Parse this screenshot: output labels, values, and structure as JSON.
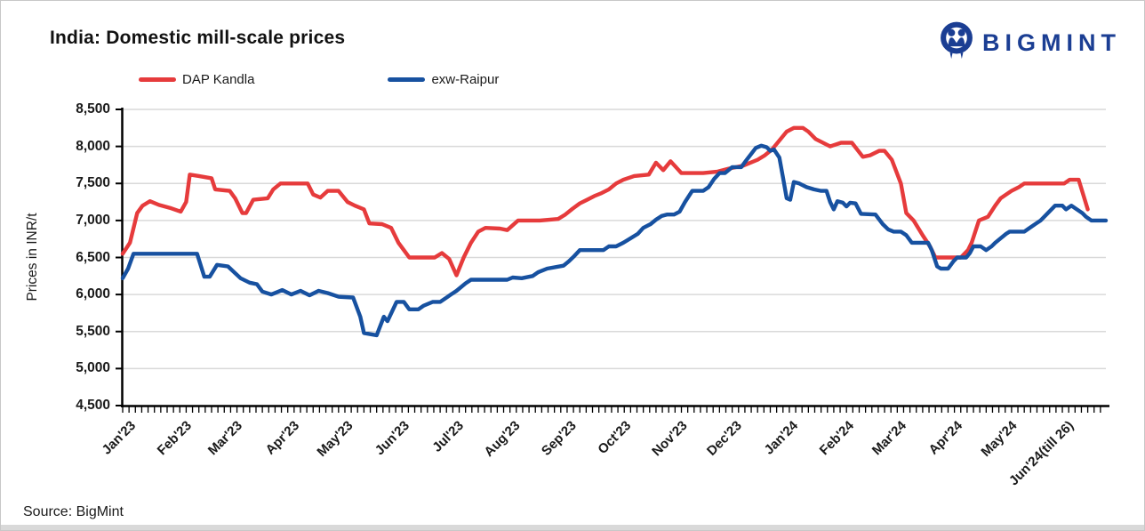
{
  "card": {
    "title": "India: Domestic mill-scale prices",
    "source": "Source: BigMint"
  },
  "logo": {
    "text": "BIGMINT",
    "color": "#1b3e93"
  },
  "colors": {
    "dap_kandla": "#e63b3c",
    "exw_raipur": "#1751a0",
    "grid": "#d9d9d9",
    "axis": "#000000",
    "bottom_strip": "#d9d9d9"
  },
  "chart_data": {
    "type": "line",
    "title": "India: Domestic mill-scale prices",
    "ylabel": "Prices in INR/t",
    "ylim": [
      4500,
      8500
    ],
    "y_tick_step": 500,
    "y_ticks": [
      {
        "value": 8500,
        "label": "8,500"
      },
      {
        "value": 8000,
        "label": "8,000"
      },
      {
        "value": 7500,
        "label": "7,500"
      },
      {
        "value": 7000,
        "label": "7,000"
      },
      {
        "value": 6500,
        "label": "6,500"
      },
      {
        "value": 6000,
        "label": "6,000"
      },
      {
        "value": 5500,
        "label": "5,500"
      },
      {
        "value": 5000,
        "label": "5,000"
      },
      {
        "value": 4500,
        "label": "4,500"
      }
    ],
    "x_unit": "days since 1 Jan 2023",
    "x_range": [
      0,
      542
    ],
    "x_ticks": [
      {
        "label": "Jan'23",
        "day": 0
      },
      {
        "label": "Feb'23",
        "day": 31
      },
      {
        "label": "Mar'23",
        "day": 59
      },
      {
        "label": "Apr'23",
        "day": 90
      },
      {
        "label": "May'23",
        "day": 120
      },
      {
        "label": "Jun'23",
        "day": 151
      },
      {
        "label": "Jul'23",
        "day": 181
      },
      {
        "label": "Aug'23",
        "day": 212
      },
      {
        "label": "Sep'23",
        "day": 243
      },
      {
        "label": "Oct'23",
        "day": 273
      },
      {
        "label": "Nov'23",
        "day": 304
      },
      {
        "label": "Dec'23",
        "day": 334
      },
      {
        "label": "Jan'24",
        "day": 365
      },
      {
        "label": "Feb'24",
        "day": 396
      },
      {
        "label": "Mar'24",
        "day": 425
      },
      {
        "label": "Apr'24",
        "day": 456
      },
      {
        "label": "May'24",
        "day": 486
      },
      {
        "label": "Jun'24(till 26)",
        "day": 517
      }
    ],
    "grid": "horizontal",
    "legend_position": "top-left",
    "series": [
      {
        "name": "DAP Kandla",
        "color": "#e63b3c",
        "points": [
          [
            0,
            6550
          ],
          [
            4,
            6700
          ],
          [
            8,
            7100
          ],
          [
            11,
            7200
          ],
          [
            15,
            7260
          ],
          [
            20,
            7210
          ],
          [
            26,
            7170
          ],
          [
            32,
            7120
          ],
          [
            35,
            7250
          ],
          [
            37,
            7620
          ],
          [
            42,
            7600
          ],
          [
            49,
            7570
          ],
          [
            51,
            7420
          ],
          [
            59,
            7400
          ],
          [
            62,
            7300
          ],
          [
            66,
            7100
          ],
          [
            68,
            7100
          ],
          [
            72,
            7280
          ],
          [
            80,
            7300
          ],
          [
            83,
            7420
          ],
          [
            87,
            7500
          ],
          [
            102,
            7500
          ],
          [
            105,
            7350
          ],
          [
            109,
            7310
          ],
          [
            113,
            7400
          ],
          [
            119,
            7400
          ],
          [
            124,
            7250
          ],
          [
            128,
            7200
          ],
          [
            133,
            7150
          ],
          [
            136,
            6960
          ],
          [
            143,
            6950
          ],
          [
            148,
            6900
          ],
          [
            152,
            6700
          ],
          [
            155,
            6600
          ],
          [
            158,
            6500
          ],
          [
            172,
            6500
          ],
          [
            176,
            6560
          ],
          [
            180,
            6480
          ],
          [
            184,
            6260
          ],
          [
            188,
            6500
          ],
          [
            192,
            6700
          ],
          [
            196,
            6850
          ],
          [
            200,
            6900
          ],
          [
            208,
            6890
          ],
          [
            212,
            6870
          ],
          [
            218,
            7000
          ],
          [
            230,
            7000
          ],
          [
            240,
            7020
          ],
          [
            244,
            7080
          ],
          [
            248,
            7160
          ],
          [
            252,
            7230
          ],
          [
            256,
            7280
          ],
          [
            260,
            7330
          ],
          [
            264,
            7370
          ],
          [
            268,
            7420
          ],
          [
            272,
            7500
          ],
          [
            276,
            7550
          ],
          [
            282,
            7600
          ],
          [
            290,
            7620
          ],
          [
            294,
            7780
          ],
          [
            298,
            7680
          ],
          [
            302,
            7800
          ],
          [
            308,
            7640
          ],
          [
            320,
            7640
          ],
          [
            328,
            7660
          ],
          [
            334,
            7700
          ],
          [
            342,
            7740
          ],
          [
            350,
            7820
          ],
          [
            354,
            7880
          ],
          [
            358,
            7960
          ],
          [
            362,
            8080
          ],
          [
            366,
            8200
          ],
          [
            370,
            8250
          ],
          [
            375,
            8250
          ],
          [
            378,
            8200
          ],
          [
            382,
            8100
          ],
          [
            390,
            8000
          ],
          [
            396,
            8050
          ],
          [
            402,
            8050
          ],
          [
            408,
            7860
          ],
          [
            412,
            7880
          ],
          [
            417,
            7940
          ],
          [
            420,
            7940
          ],
          [
            424,
            7820
          ],
          [
            429,
            7500
          ],
          [
            432,
            7100
          ],
          [
            436,
            7000
          ],
          [
            441,
            6800
          ],
          [
            445,
            6650
          ],
          [
            448,
            6500
          ],
          [
            462,
            6500
          ],
          [
            466,
            6600
          ],
          [
            468,
            6700
          ],
          [
            472,
            7000
          ],
          [
            477,
            7050
          ],
          [
            481,
            7200
          ],
          [
            484,
            7300
          ],
          [
            487,
            7350
          ],
          [
            490,
            7400
          ],
          [
            494,
            7450
          ],
          [
            497,
            7500
          ],
          [
            519,
            7500
          ],
          [
            522,
            7550
          ],
          [
            527,
            7550
          ],
          [
            532,
            7150
          ]
        ]
      },
      {
        "name": "exw-Raipur",
        "color": "#1751a0",
        "points": [
          [
            0,
            6220
          ],
          [
            3,
            6350
          ],
          [
            6,
            6550
          ],
          [
            41,
            6550
          ],
          [
            45,
            6240
          ],
          [
            48,
            6240
          ],
          [
            52,
            6400
          ],
          [
            58,
            6380
          ],
          [
            65,
            6220
          ],
          [
            70,
            6160
          ],
          [
            74,
            6140
          ],
          [
            77,
            6040
          ],
          [
            82,
            6000
          ],
          [
            88,
            6060
          ],
          [
            93,
            6000
          ],
          [
            98,
            6050
          ],
          [
            103,
            5990
          ],
          [
            108,
            6050
          ],
          [
            113,
            6020
          ],
          [
            119,
            5970
          ],
          [
            127,
            5960
          ],
          [
            131,
            5700
          ],
          [
            133,
            5480
          ],
          [
            140,
            5450
          ],
          [
            144,
            5700
          ],
          [
            146,
            5640
          ],
          [
            151,
            5900
          ],
          [
            155,
            5900
          ],
          [
            158,
            5800
          ],
          [
            163,
            5800
          ],
          [
            166,
            5850
          ],
          [
            171,
            5900
          ],
          [
            175,
            5900
          ],
          [
            178,
            5950
          ],
          [
            181,
            6000
          ],
          [
            184,
            6050
          ],
          [
            189,
            6150
          ],
          [
            192,
            6200
          ],
          [
            212,
            6200
          ],
          [
            215,
            6230
          ],
          [
            220,
            6220
          ],
          [
            226,
            6250
          ],
          [
            229,
            6300
          ],
          [
            234,
            6350
          ],
          [
            243,
            6390
          ],
          [
            246,
            6450
          ],
          [
            249,
            6520
          ],
          [
            252,
            6600
          ],
          [
            265,
            6600
          ],
          [
            268,
            6650
          ],
          [
            272,
            6650
          ],
          [
            276,
            6700
          ],
          [
            280,
            6760
          ],
          [
            284,
            6820
          ],
          [
            287,
            6900
          ],
          [
            291,
            6950
          ],
          [
            294,
            7010
          ],
          [
            297,
            7060
          ],
          [
            300,
            7080
          ],
          [
            304,
            7080
          ],
          [
            307,
            7120
          ],
          [
            310,
            7250
          ],
          [
            314,
            7400
          ],
          [
            320,
            7400
          ],
          [
            323,
            7450
          ],
          [
            326,
            7560
          ],
          [
            329,
            7640
          ],
          [
            332,
            7640
          ],
          [
            336,
            7720
          ],
          [
            341,
            7720
          ],
          [
            344,
            7820
          ],
          [
            349,
            7980
          ],
          [
            352,
            8010
          ],
          [
            355,
            7990
          ],
          [
            357,
            7940
          ],
          [
            359,
            7960
          ],
          [
            362,
            7850
          ],
          [
            364,
            7580
          ],
          [
            366,
            7300
          ],
          [
            368,
            7280
          ],
          [
            370,
            7520
          ],
          [
            373,
            7500
          ],
          [
            377,
            7450
          ],
          [
            381,
            7420
          ],
          [
            385,
            7400
          ],
          [
            388,
            7400
          ],
          [
            390,
            7250
          ],
          [
            392,
            7150
          ],
          [
            394,
            7260
          ],
          [
            397,
            7240
          ],
          [
            399,
            7190
          ],
          [
            401,
            7240
          ],
          [
            404,
            7230
          ],
          [
            407,
            7090
          ],
          [
            415,
            7080
          ],
          [
            419,
            6950
          ],
          [
            422,
            6880
          ],
          [
            425,
            6850
          ],
          [
            429,
            6850
          ],
          [
            432,
            6800
          ],
          [
            435,
            6700
          ],
          [
            444,
            6700
          ],
          [
            446,
            6600
          ],
          [
            449,
            6380
          ],
          [
            451,
            6350
          ],
          [
            455,
            6350
          ],
          [
            458,
            6450
          ],
          [
            460,
            6500
          ],
          [
            465,
            6500
          ],
          [
            467,
            6560
          ],
          [
            469,
            6650
          ],
          [
            473,
            6650
          ],
          [
            476,
            6600
          ],
          [
            479,
            6650
          ],
          [
            481,
            6700
          ],
          [
            484,
            6760
          ],
          [
            487,
            6820
          ],
          [
            489,
            6850
          ],
          [
            497,
            6850
          ],
          [
            500,
            6900
          ],
          [
            503,
            6950
          ],
          [
            506,
            7000
          ],
          [
            510,
            7100
          ],
          [
            514,
            7200
          ],
          [
            518,
            7200
          ],
          [
            520,
            7150
          ],
          [
            523,
            7200
          ],
          [
            526,
            7150
          ],
          [
            529,
            7100
          ],
          [
            531,
            7050
          ],
          [
            534,
            7000
          ],
          [
            542,
            7000
          ]
        ]
      }
    ]
  },
  "legend": [
    {
      "label": "DAP Kandla",
      "color": "#e63b3c"
    },
    {
      "label": "exw-Raipur",
      "color": "#1751a0"
    }
  ]
}
